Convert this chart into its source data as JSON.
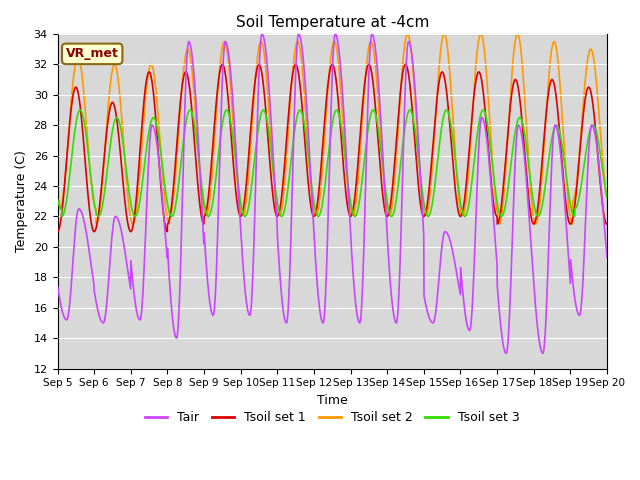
{
  "title": "Soil Temperature at -4cm",
  "xlabel": "Time",
  "ylabel": "Temperature (C)",
  "ylim": [
    12,
    34
  ],
  "x_tick_labels": [
    "Sep 5",
    "Sep 6",
    "Sep 7",
    "Sep 8",
    "Sep 9",
    "Sep 10",
    "Sep 11",
    "Sep 12",
    "Sep 13",
    "Sep 14",
    "Sep 15",
    "Sep 16",
    "Sep 17",
    "Sep 18",
    "Sep 19",
    "Sep 20"
  ],
  "yticks": [
    12,
    14,
    16,
    18,
    20,
    22,
    24,
    26,
    28,
    30,
    32,
    34
  ],
  "site_label": "VR_met",
  "plot_bg_color": "#d8d8d8",
  "grid_color": "#ffffff",
  "colors": {
    "Tair": "#cc44ff",
    "Tsoil_set1": "#dd0000",
    "Tsoil_set2": "#ff9900",
    "Tsoil_set3": "#33dd00"
  },
  "legend_labels": [
    "Tair",
    "Tsoil set 1",
    "Tsoil set 2",
    "Tsoil set 3"
  ],
  "num_days": 15,
  "points_per_day": 144,
  "tair_mins": [
    15.2,
    15.0,
    15.2,
    14.0,
    15.5,
    15.5,
    15.0,
    15.0,
    15.0,
    15.0,
    15.0,
    14.5,
    13.0,
    13.0,
    15.5
  ],
  "tair_maxs": [
    22.5,
    22.0,
    28.0,
    33.5,
    33.5,
    34.0,
    34.0,
    34.0,
    34.0,
    33.5,
    21.0,
    28.5,
    28.0,
    28.0,
    28.0
  ],
  "tsoil1_mins": [
    21.0,
    21.0,
    21.0,
    21.5,
    22.0,
    22.0,
    22.0,
    22.0,
    22.0,
    22.0,
    22.0,
    22.0,
    21.5,
    21.5,
    21.5
  ],
  "tsoil1_maxs": [
    30.5,
    29.5,
    31.5,
    31.5,
    32.0,
    32.0,
    32.0,
    32.0,
    32.0,
    32.0,
    31.5,
    31.5,
    31.0,
    31.0,
    30.5
  ],
  "tsoil2_mins": [
    22.5,
    21.5,
    21.5,
    22.0,
    22.0,
    22.0,
    22.0,
    22.0,
    22.0,
    22.0,
    22.0,
    22.0,
    21.5,
    21.5,
    23.0
  ],
  "tsoil2_maxs": [
    32.5,
    32.0,
    32.0,
    33.0,
    33.5,
    33.5,
    33.5,
    33.5,
    33.5,
    34.0,
    34.0,
    34.0,
    34.0,
    33.5,
    33.0
  ],
  "tsoil3_mins": [
    22.0,
    22.0,
    22.0,
    22.0,
    22.0,
    22.0,
    22.0,
    22.0,
    22.0,
    22.0,
    22.0,
    22.0,
    22.0,
    22.0,
    22.5
  ],
  "tsoil3_maxs": [
    29.0,
    28.5,
    28.5,
    29.0,
    29.0,
    29.0,
    29.0,
    29.0,
    29.0,
    29.0,
    29.0,
    29.0,
    28.5,
    28.0,
    28.0
  ]
}
